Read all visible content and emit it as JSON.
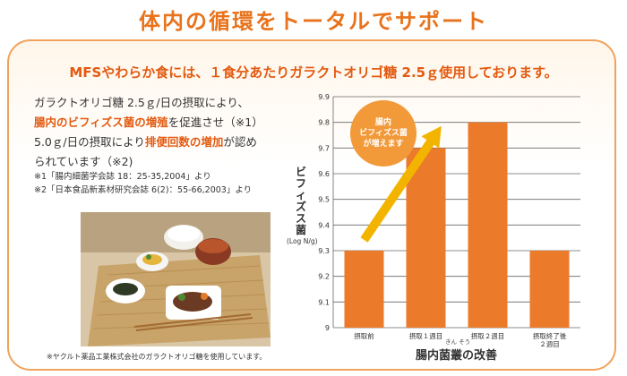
{
  "title": "体内の循環をトータルでサポート",
  "headline": "MFSやわらか食には、１食分あたりガラクトオリゴ糖 2.5ｇ使用しております。",
  "body": {
    "l1": "ガラクトオリゴ糖 2.5ｇ/日の摂取により、",
    "l2_hl": "腸内のビフィズス菌の増殖",
    "l2": "を促進させ（※1）",
    "l3a": "5.0ｇ/日の摂取により",
    "l3_hl": "排便回数の増加",
    "l3b": "が認め",
    "l4": "られています（※2)"
  },
  "refs": [
    "※1「腸内細菌学会誌 18：25-35,2004」より",
    "※2「日本食品新素材研究会誌 6(2)：55-66,2003」より"
  ],
  "note": "※ヤクルト薬品工業株式会社のガラクトオリゴ糖を使用しています。",
  "bubble": {
    "l1": "腸内",
    "l2": "ビフィズス菌",
    "l3": "が増えます"
  },
  "chart_data": {
    "type": "bar",
    "categories": [
      "摂取前",
      "摂取１週目",
      "摂取２週目",
      "摂取終了後２週目"
    ],
    "category_lines": [
      [
        "摂取前"
      ],
      [
        "摂取１週目"
      ],
      [
        "摂取２週目"
      ],
      [
        "摂取終了後",
        "２週目"
      ]
    ],
    "values": [
      9.3,
      9.7,
      9.8,
      9.3
    ],
    "ylabel": "ビフィズス菌",
    "yunit": "(Log N/g)",
    "xlabel": "腸内菌叢の改善",
    "xlabel_ruby": "きん そう",
    "ylim": [
      9.0,
      9.9
    ],
    "yticks": [
      "9.9",
      "9.8",
      "9.7",
      "9.6",
      "9.5",
      "9.4",
      "9.3",
      "9.2",
      "9.1",
      "9"
    ],
    "grid": true,
    "bar_color": "#ec7a2b",
    "arrow_color": "#f3b400"
  }
}
